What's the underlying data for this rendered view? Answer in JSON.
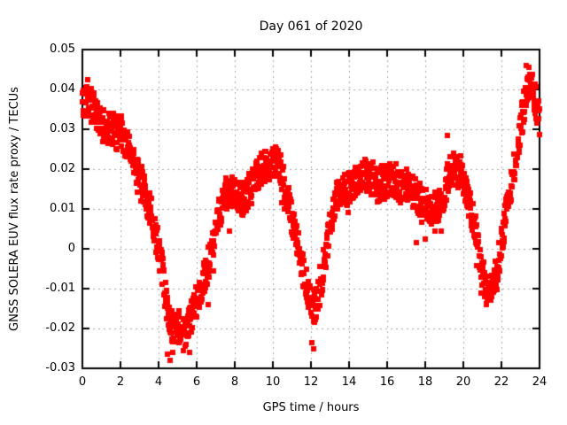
{
  "chart_data": {
    "type": "scatter",
    "title": "Day 061 of 2020",
    "xlabel": "GPS time / hours",
    "ylabel": "GNSS SOLERA EUV flux rate proxy / TECUs",
    "xlim": [
      0,
      24
    ],
    "ylim": [
      -0.03,
      0.05
    ],
    "x_ticks": [
      0,
      2,
      4,
      6,
      8,
      10,
      12,
      14,
      16,
      18,
      20,
      22,
      24
    ],
    "x_tick_labels": [
      "0",
      "2",
      "4",
      "6",
      "8",
      "10",
      "12",
      "14",
      "16",
      "18",
      "20",
      "22",
      "24"
    ],
    "y_ticks": [
      0.05,
      0.04,
      0.03,
      0.02,
      0.01,
      0,
      -0.01,
      -0.02,
      -0.03
    ],
    "y_tick_labels": [
      "0.05",
      "0.04",
      "0.03",
      "0.02",
      "0.01",
      "0",
      "-0.01",
      "-0.02",
      "-0.03"
    ],
    "grid": true,
    "legend": "none",
    "colors": {
      "points": "#ff0000",
      "border": "#000000",
      "grid": "#a8a8a8",
      "text": "#000000",
      "background": "#ffffff"
    },
    "series": [
      {
        "name": "GNSS SOLERA EUV flux rate proxy",
        "marker": "filled-square",
        "color": "#ff0000",
        "samples_per_hour": 60,
        "band_halfwidth": 0.0042,
        "center_curve": [
          [
            0,
            0.036
          ],
          [
            0.2,
            0.038
          ],
          [
            0.4,
            0.037
          ],
          [
            0.6,
            0.035
          ],
          [
            0.8,
            0.033
          ],
          [
            1,
            0.0315
          ],
          [
            1.2,
            0.03
          ],
          [
            1.4,
            0.0305
          ],
          [
            1.6,
            0.03
          ],
          [
            1.8,
            0.0295
          ],
          [
            2,
            0.0305
          ],
          [
            2.2,
            0.027
          ],
          [
            2.4,
            0.025
          ],
          [
            2.6,
            0.023
          ],
          [
            2.8,
            0.0205
          ],
          [
            3,
            0.018
          ],
          [
            3.2,
            0.0155
          ],
          [
            3.4,
            0.012
          ],
          [
            3.6,
            0.009
          ],
          [
            3.8,
            0.005
          ],
          [
            4,
            0.001
          ],
          [
            4.2,
            -0.006
          ],
          [
            4.4,
            -0.013
          ],
          [
            4.6,
            -0.018
          ],
          [
            4.8,
            -0.02
          ],
          [
            5,
            -0.0205
          ],
          [
            5.2,
            -0.021
          ],
          [
            5.4,
            -0.0205
          ],
          [
            5.6,
            -0.019
          ],
          [
            5.8,
            -0.016
          ],
          [
            6,
            -0.013
          ],
          [
            6.2,
            -0.01
          ],
          [
            6.4,
            -0.007
          ],
          [
            6.6,
            -0.004
          ],
          [
            6.8,
            -0.001
          ],
          [
            7,
            0.004
          ],
          [
            7.2,
            0.009
          ],
          [
            7.4,
            0.013
          ],
          [
            7.6,
            0.014
          ],
          [
            7.8,
            0.0145
          ],
          [
            8,
            0.0135
          ],
          [
            8.2,
            0.012
          ],
          [
            8.4,
            0.0125
          ],
          [
            8.6,
            0.013
          ],
          [
            8.8,
            0.015
          ],
          [
            9,
            0.017
          ],
          [
            9.2,
            0.019
          ],
          [
            9.4,
            0.02
          ],
          [
            9.6,
            0.021
          ],
          [
            9.8,
            0.021
          ],
          [
            10,
            0.0215
          ],
          [
            10.2,
            0.0215
          ],
          [
            10.4,
            0.02
          ],
          [
            10.6,
            0.016
          ],
          [
            10.8,
            0.012
          ],
          [
            11,
            0.007
          ],
          [
            11.2,
            0.003
          ],
          [
            11.4,
            -0.001
          ],
          [
            11.6,
            -0.006
          ],
          [
            11.8,
            -0.01
          ],
          [
            12,
            -0.013
          ],
          [
            12.2,
            -0.0145
          ],
          [
            12.4,
            -0.012
          ],
          [
            12.6,
            -0.007
          ],
          [
            12.8,
            -0.001
          ],
          [
            13,
            0.006
          ],
          [
            13.2,
            0.011
          ],
          [
            13.4,
            0.013
          ],
          [
            13.6,
            0.014
          ],
          [
            13.8,
            0.015
          ],
          [
            14,
            0.015
          ],
          [
            14.2,
            0.016
          ],
          [
            14.4,
            0.017
          ],
          [
            14.6,
            0.018
          ],
          [
            14.8,
            0.018
          ],
          [
            15,
            0.018
          ],
          [
            15.2,
            0.0175
          ],
          [
            15.4,
            0.016
          ],
          [
            15.6,
            0.016
          ],
          [
            15.8,
            0.0165
          ],
          [
            16,
            0.017
          ],
          [
            16.2,
            0.0175
          ],
          [
            16.4,
            0.017
          ],
          [
            16.6,
            0.016
          ],
          [
            16.8,
            0.0155
          ],
          [
            17,
            0.015
          ],
          [
            17.2,
            0.0145
          ],
          [
            17.4,
            0.014
          ],
          [
            17.6,
            0.013
          ],
          [
            17.8,
            0.012
          ],
          [
            18,
            0.011
          ],
          [
            18.2,
            0.0105
          ],
          [
            18.4,
            0.01
          ],
          [
            18.6,
            0.0105
          ],
          [
            18.8,
            0.011
          ],
          [
            19,
            0.014
          ],
          [
            19.2,
            0.018
          ],
          [
            19.4,
            0.02
          ],
          [
            19.6,
            0.0195
          ],
          [
            19.8,
            0.019
          ],
          [
            20,
            0.0175
          ],
          [
            20.2,
            0.014
          ],
          [
            20.4,
            0.01
          ],
          [
            20.6,
            0.005
          ],
          [
            20.8,
            0
          ],
          [
            21,
            -0.006
          ],
          [
            21.2,
            -0.01
          ],
          [
            21.4,
            -0.012
          ],
          [
            21.6,
            -0.009
          ],
          [
            21.8,
            -0.005
          ],
          [
            22,
            0.001
          ],
          [
            22.2,
            0.008
          ],
          [
            22.4,
            0.013
          ],
          [
            22.6,
            0.018
          ],
          [
            22.8,
            0.024
          ],
          [
            23,
            0.03
          ],
          [
            23.2,
            0.036
          ],
          [
            23.4,
            0.04
          ],
          [
            23.6,
            0.04
          ],
          [
            23.8,
            0.037
          ],
          [
            24,
            0.032
          ]
        ],
        "outliers": [
          [
            0.3,
            0.0425
          ],
          [
            4.45,
            -0.0265
          ],
          [
            4.6,
            -0.028
          ],
          [
            4.75,
            -0.026
          ],
          [
            5.3,
            -0.0255
          ],
          [
            5.65,
            -0.026
          ],
          [
            6.6,
            -0.014
          ],
          [
            6.9,
            -0.0055
          ],
          [
            7.7,
            0.0045
          ],
          [
            12.05,
            -0.0235
          ],
          [
            12.15,
            -0.025
          ],
          [
            17.55,
            0.0015
          ],
          [
            18.0,
            0.0025
          ],
          [
            18.5,
            0.0045
          ],
          [
            18.85,
            0.0045
          ],
          [
            19.15,
            0.0285
          ],
          [
            23.3,
            0.046
          ],
          [
            23.45,
            0.0455
          ]
        ]
      }
    ]
  }
}
